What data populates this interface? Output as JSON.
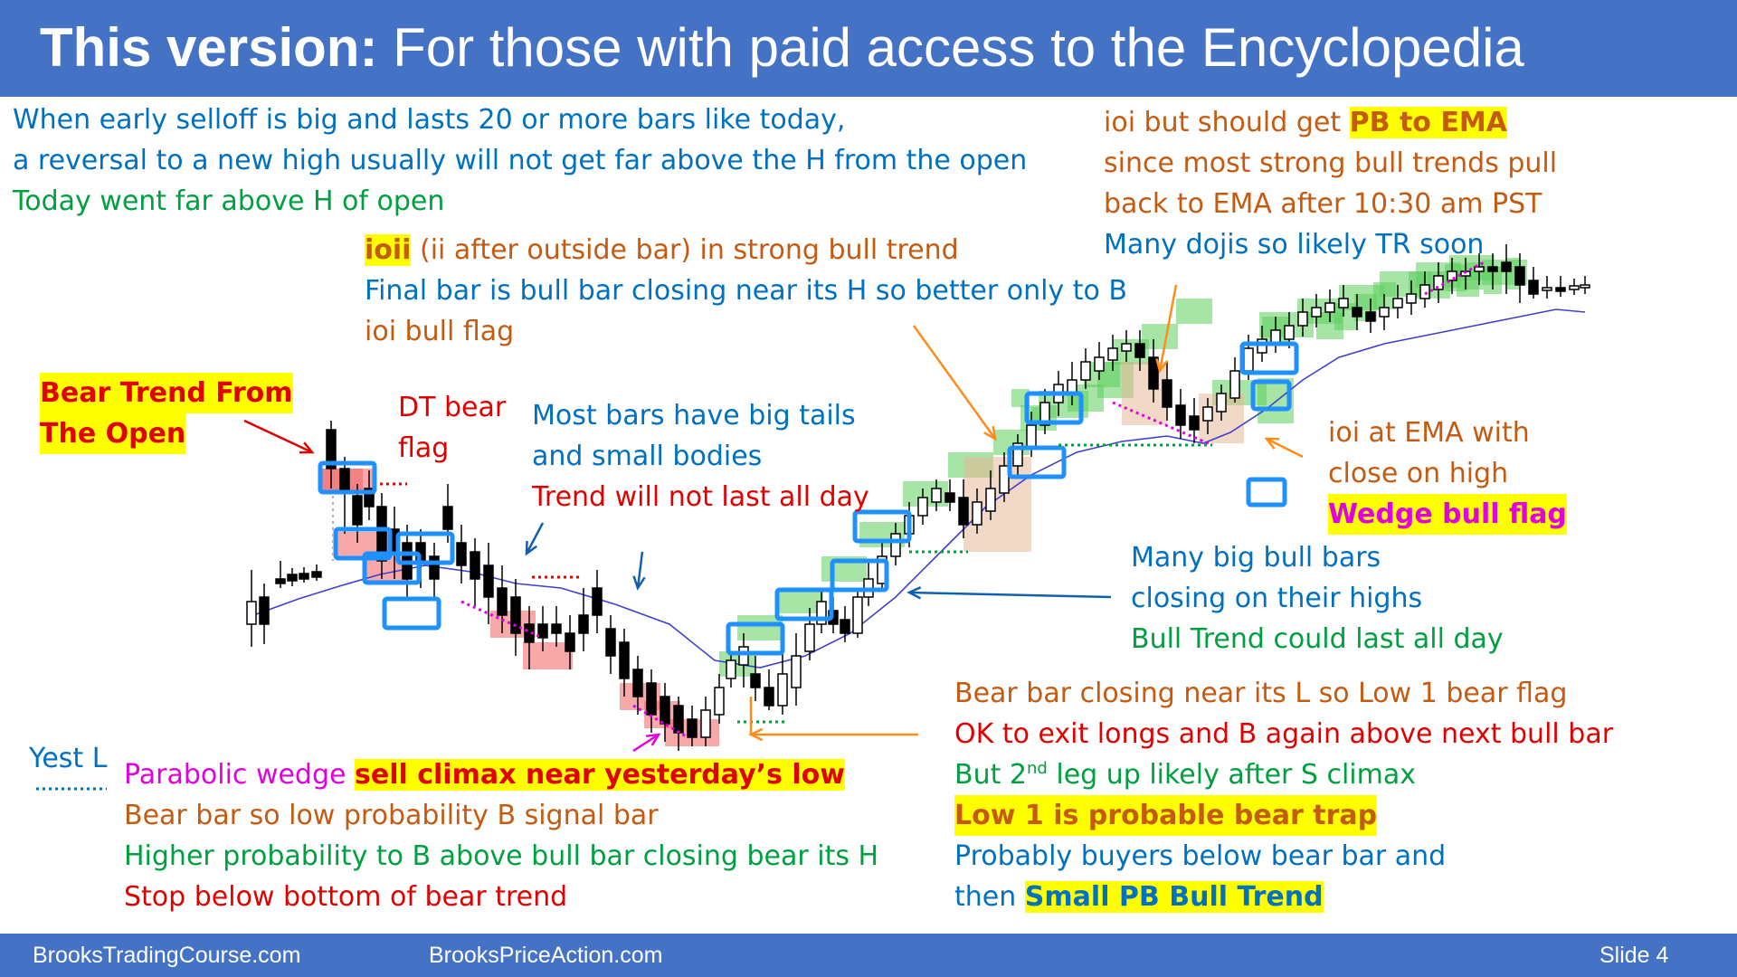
{
  "slide": {
    "title_bold": "This version:",
    "title_rest": " For those with paid access to the Encyclopedia",
    "footer_left": "BrooksTradingCourse.com",
    "footer_mid": "BrooksPriceAction.com",
    "footer_right": "Slide  4"
  },
  "notes": {
    "top_left": [
      "When early selloff is big and lasts 20 or more bars like today,",
      "a reversal to a new high usually will not get far above the H from the open",
      "Today went far above H of open"
    ],
    "top_right": {
      "line1_pre": "ioi but should get ",
      "line1_hl": "PB to EMA",
      "line2": "since most strong bull trends pull",
      "line3": "back to EMA after 10:30 am PST",
      "line4": "Many dojis so likely TR soon"
    },
    "ioii": {
      "hl": "ioii",
      "rest": " (ii after outside bar) in strong bull trend",
      "line2": "Final bar is bull bar closing near its H so better only to B",
      "line3": "ioi bull flag"
    },
    "bear_trend": [
      "Bear Trend From",
      "The Open"
    ],
    "dt_flag": [
      "DT bear",
      "flag"
    ],
    "tails": [
      "Most bars have big tails",
      "and small bodies",
      "Trend will not last all day"
    ],
    "ema_ioi": [
      "ioi at EMA with",
      "close on high",
      "Wedge bull flag"
    ],
    "big_bull": [
      "Many big bull bars",
      "closing on their highs",
      "Bull Trend could last all day"
    ],
    "low1": {
      "line1": "Bear bar closing near its L so Low 1 bear flag",
      "line2": "OK to exit longs and B again above next bull bar",
      "line3_pre": "But 2",
      "line3_sup": "nd",
      "line3_post": " leg up likely after S climax",
      "line4": "Low 1 is probable bear trap",
      "line5": "Probably buyers below bear bar and",
      "line6_pre": "then ",
      "line6_hl": "Small PB Bull Trend"
    },
    "yest_l": "Yest L",
    "parabolic": {
      "pre": "Parabolic wedge ",
      "hl": "sell climax near yesterday’s low",
      "line2": "Bear bar so low probability B signal bar",
      "line3": "Higher probability to B above bull bar closing bear its H",
      "line4": "Stop below bottom of bear trend"
    }
  },
  "colors": {
    "title_bar": "#4472c4",
    "bull_highlight": "#5ccf5c",
    "bear_highlight": "#f06060",
    "signal_box": "#1e90ff",
    "ema": "#4040d0",
    "annotation_orange": "#ff8c1a",
    "annotation_blue": "#1060b0"
  }
}
